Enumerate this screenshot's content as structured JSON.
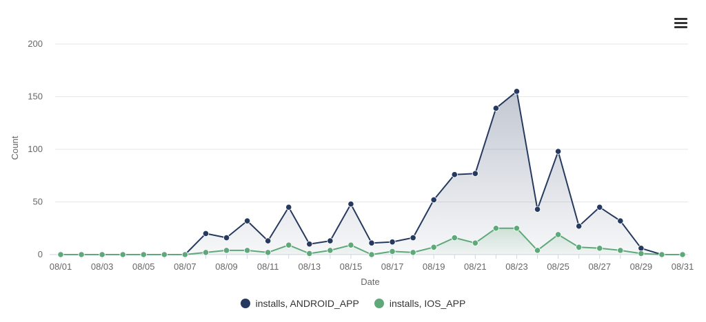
{
  "chart_data": {
    "type": "area",
    "title": "",
    "xlabel": "Date",
    "ylabel": "Count",
    "ylim": [
      0,
      200
    ],
    "yticks": [
      0,
      50,
      100,
      150,
      200
    ],
    "categories": [
      "08/01",
      "08/02",
      "08/03",
      "08/04",
      "08/05",
      "08/06",
      "08/07",
      "08/08",
      "08/09",
      "08/10",
      "08/11",
      "08/12",
      "08/13",
      "08/14",
      "08/15",
      "08/16",
      "08/17",
      "08/18",
      "08/19",
      "08/20",
      "08/21",
      "08/22",
      "08/23",
      "08/24",
      "08/25",
      "08/26",
      "08/27",
      "08/28",
      "08/29",
      "08/30",
      "08/31"
    ],
    "xtick_labels": [
      "08/01",
      "08/03",
      "08/05",
      "08/07",
      "08/09",
      "08/11",
      "08/13",
      "08/15",
      "08/17",
      "08/19",
      "08/21",
      "08/23",
      "08/25",
      "08/27",
      "08/29",
      "08/31"
    ],
    "series": [
      {
        "name": "installs, ANDROID_APP",
        "color": "#26395e",
        "values": [
          0,
          0,
          0,
          0,
          0,
          0,
          0,
          20,
          16,
          32,
          13,
          45,
          10,
          13,
          48,
          11,
          12,
          16,
          52,
          76,
          77,
          139,
          155,
          43,
          98,
          27,
          45,
          32,
          6,
          0,
          0
        ]
      },
      {
        "name": "installs, IOS_APP",
        "color": "#5fa87a",
        "values": [
          0,
          0,
          0,
          0,
          0,
          0,
          0,
          2,
          4,
          4,
          2,
          9,
          1,
          4,
          9,
          0,
          3,
          2,
          7,
          16,
          11,
          25,
          25,
          4,
          19,
          7,
          6,
          4,
          1,
          0,
          0
        ]
      }
    ],
    "grid": true,
    "legend": "bottom-center"
  },
  "menu": {
    "icon": "hamburger-menu-icon"
  }
}
